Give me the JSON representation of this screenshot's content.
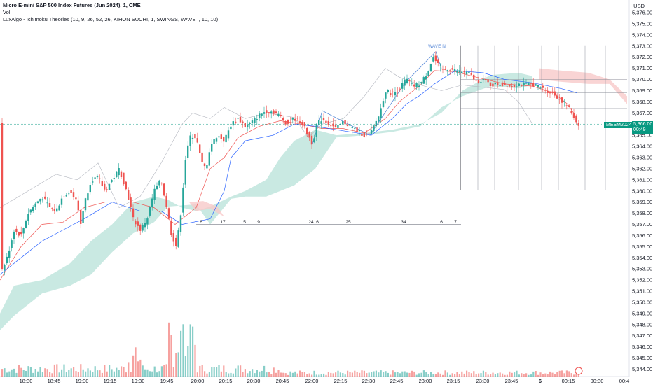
{
  "legend": {
    "title": "Micro E-mini S&P 500 Index Futures (Jun 2024), 1, CME",
    "vol": "Vol",
    "indicator": "LuxAlgo - Ichimoku Theories (10, 9, 26, 52, 26, KIHON SUCHI, 1, SWINGS, WAVE I, 10, 10)"
  },
  "currency": "USD",
  "price_tag": {
    "value": "5,366.00",
    "countdown": "00:49",
    "symbol": "MESM2024"
  },
  "wave_label": "WAVE N",
  "colors": {
    "up": "#26a69a",
    "down": "#ef5350",
    "cloud_green": "#b7e2d8",
    "cloud_red": "#f7c9c9",
    "kijun": "#2962ff",
    "tenkan": "#ef5350",
    "chikou": "#b2b5be"
  },
  "chart_data": {
    "type": "candlestick",
    "y_ticks": [
      "5,376.00",
      "5,375.00",
      "5,374.00",
      "5,373.00",
      "5,372.00",
      "5,371.00",
      "5,370.00",
      "5,369.00",
      "5,368.00",
      "5,367.00",
      "5,366.00",
      "5,365.00",
      "5,364.00",
      "5,363.00",
      "5,362.00",
      "5,361.00",
      "5,360.00",
      "5,359.00",
      "5,358.00",
      "5,357.00",
      "5,356.00",
      "5,355.00",
      "5,354.00",
      "5,353.00",
      "5,352.00",
      "5,351.00",
      "5,350.00",
      "5,349.00",
      "5,348.00",
      "5,347.00",
      "5,346.00",
      "5,345.00",
      "5,344.00"
    ],
    "x_ticks": [
      "18:30",
      "18:45",
      "19:00",
      "19:15",
      "19:30",
      "19:45",
      "20:00",
      "20:15",
      "20:30",
      "20:45",
      "22:00",
      "22:15",
      "22:30",
      "22:45",
      "23:00",
      "23:15",
      "23:30",
      "23:45",
      "6",
      "00:15",
      "00:30",
      "00:4"
    ],
    "ylim": [
      5343.5,
      5376.5
    ],
    "kihon_suchi_counts": [
      "6",
      "17",
      "5",
      "9",
      "24",
      "6",
      "25",
      "34",
      "6",
      "7"
    ],
    "price_path": [
      [
        0,
        5352.5
      ],
      [
        10,
        5354
      ],
      [
        20,
        5356.5
      ],
      [
        30,
        5356
      ],
      [
        40,
        5358
      ],
      [
        50,
        5358.8
      ],
      [
        60,
        5359.5
      ],
      [
        70,
        5358.6
      ],
      [
        80,
        5358.2
      ],
      [
        90,
        5359.6
      ],
      [
        100,
        5360
      ],
      [
        110,
        5359
      ],
      [
        115,
        5357
      ],
      [
        120,
        5358.8
      ],
      [
        130,
        5361
      ],
      [
        140,
        5361.2
      ],
      [
        150,
        5360
      ],
      [
        160,
        5361
      ],
      [
        170,
        5362
      ],
      [
        178,
        5360.5
      ],
      [
        185,
        5359
      ],
      [
        190,
        5357.5
      ],
      [
        200,
        5356.5
      ],
      [
        210,
        5357.5
      ],
      [
        220,
        5360
      ],
      [
        230,
        5361
      ],
      [
        238,
        5358.5
      ],
      [
        245,
        5356
      ],
      [
        252,
        5355
      ],
      [
        258,
        5358
      ],
      [
        265,
        5363
      ],
      [
        272,
        5365
      ],
      [
        280,
        5364.8
      ],
      [
        288,
        5362.5
      ],
      [
        294,
        5362
      ],
      [
        300,
        5364
      ],
      [
        310,
        5365
      ],
      [
        320,
        5364.5
      ],
      [
        330,
        5366
      ],
      [
        340,
        5366.5
      ],
      [
        350,
        5365.8
      ],
      [
        360,
        5366.2
      ],
      [
        370,
        5366.8
      ],
      [
        380,
        5367.2
      ],
      [
        390,
        5367.1
      ],
      [
        400,
        5366.7
      ],
      [
        410,
        5366
      ],
      [
        420,
        5366.5
      ],
      [
        430,
        5366.2
      ],
      [
        440,
        5365
      ],
      [
        446,
        5364.2
      ],
      [
        452,
        5366
      ],
      [
        460,
        5366.5
      ],
      [
        470,
        5366
      ],
      [
        480,
        5365.6
      ],
      [
        490,
        5366.2
      ],
      [
        500,
        5365.8
      ],
      [
        510,
        5365.4
      ],
      [
        520,
        5365
      ],
      [
        528,
        5365
      ],
      [
        535,
        5366
      ],
      [
        542,
        5367
      ],
      [
        550,
        5369
      ],
      [
        560,
        5368.7
      ],
      [
        570,
        5369.2
      ],
      [
        580,
        5370
      ],
      [
        590,
        5369.4
      ],
      [
        600,
        5369.6
      ],
      [
        610,
        5370.6
      ],
      [
        618,
        5372
      ],
      [
        625,
        5371.3
      ],
      [
        632,
        5370.8
      ],
      [
        640,
        5371
      ],
      [
        650,
        5370.8
      ],
      [
        660,
        5370.7
      ],
      [
        670,
        5370.5
      ],
      [
        680,
        5369.8
      ],
      [
        690,
        5370
      ],
      [
        700,
        5369.5
      ],
      [
        710,
        5369.6
      ],
      [
        720,
        5369.5
      ],
      [
        730,
        5369.4
      ],
      [
        740,
        5369.6
      ],
      [
        750,
        5369.5
      ],
      [
        760,
        5369.6
      ],
      [
        770,
        5369.3
      ],
      [
        780,
        5369
      ],
      [
        790,
        5368.7
      ],
      [
        800,
        5368.2
      ],
      [
        810,
        5367.6
      ],
      [
        818,
        5366.8
      ],
      [
        824,
        5366
      ]
    ]
  }
}
